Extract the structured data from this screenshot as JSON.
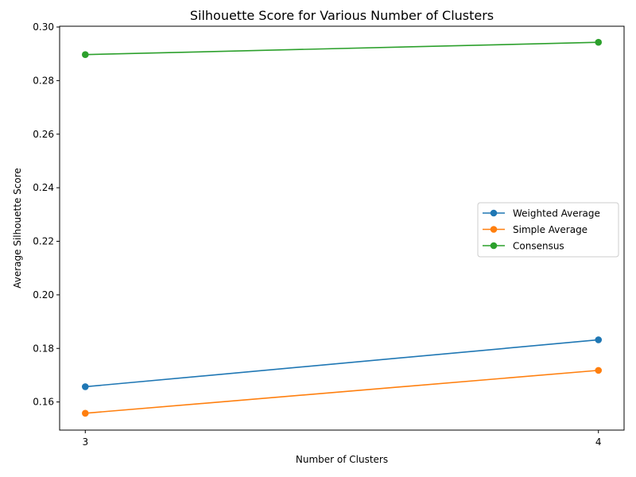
{
  "chart_data": {
    "type": "line",
    "title": "Silhouette Score for Various Number of Clusters",
    "xlabel": "Number of Clusters",
    "ylabel": "Average Silhouette Score",
    "x": [
      3,
      4
    ],
    "xticks": [
      "3",
      "4"
    ],
    "yticks": [
      "0.16",
      "0.18",
      "0.20",
      "0.22",
      "0.24",
      "0.26",
      "0.28",
      "0.30"
    ],
    "ylim": [
      0.1495,
      0.3003
    ],
    "xlim": [
      2.95,
      4.05
    ],
    "grid": false,
    "legend_position": "center right",
    "series": [
      {
        "name": "Weighted Average",
        "color": "#1f77b4",
        "marker": "circle",
        "values": [
          0.1657,
          0.1832
        ]
      },
      {
        "name": "Simple Average",
        "color": "#ff7f0e",
        "marker": "circle",
        "values": [
          0.1558,
          0.1718
        ]
      },
      {
        "name": "Consensus",
        "color": "#2ca02c",
        "marker": "circle",
        "values": [
          0.2897,
          0.2943
        ]
      }
    ]
  }
}
